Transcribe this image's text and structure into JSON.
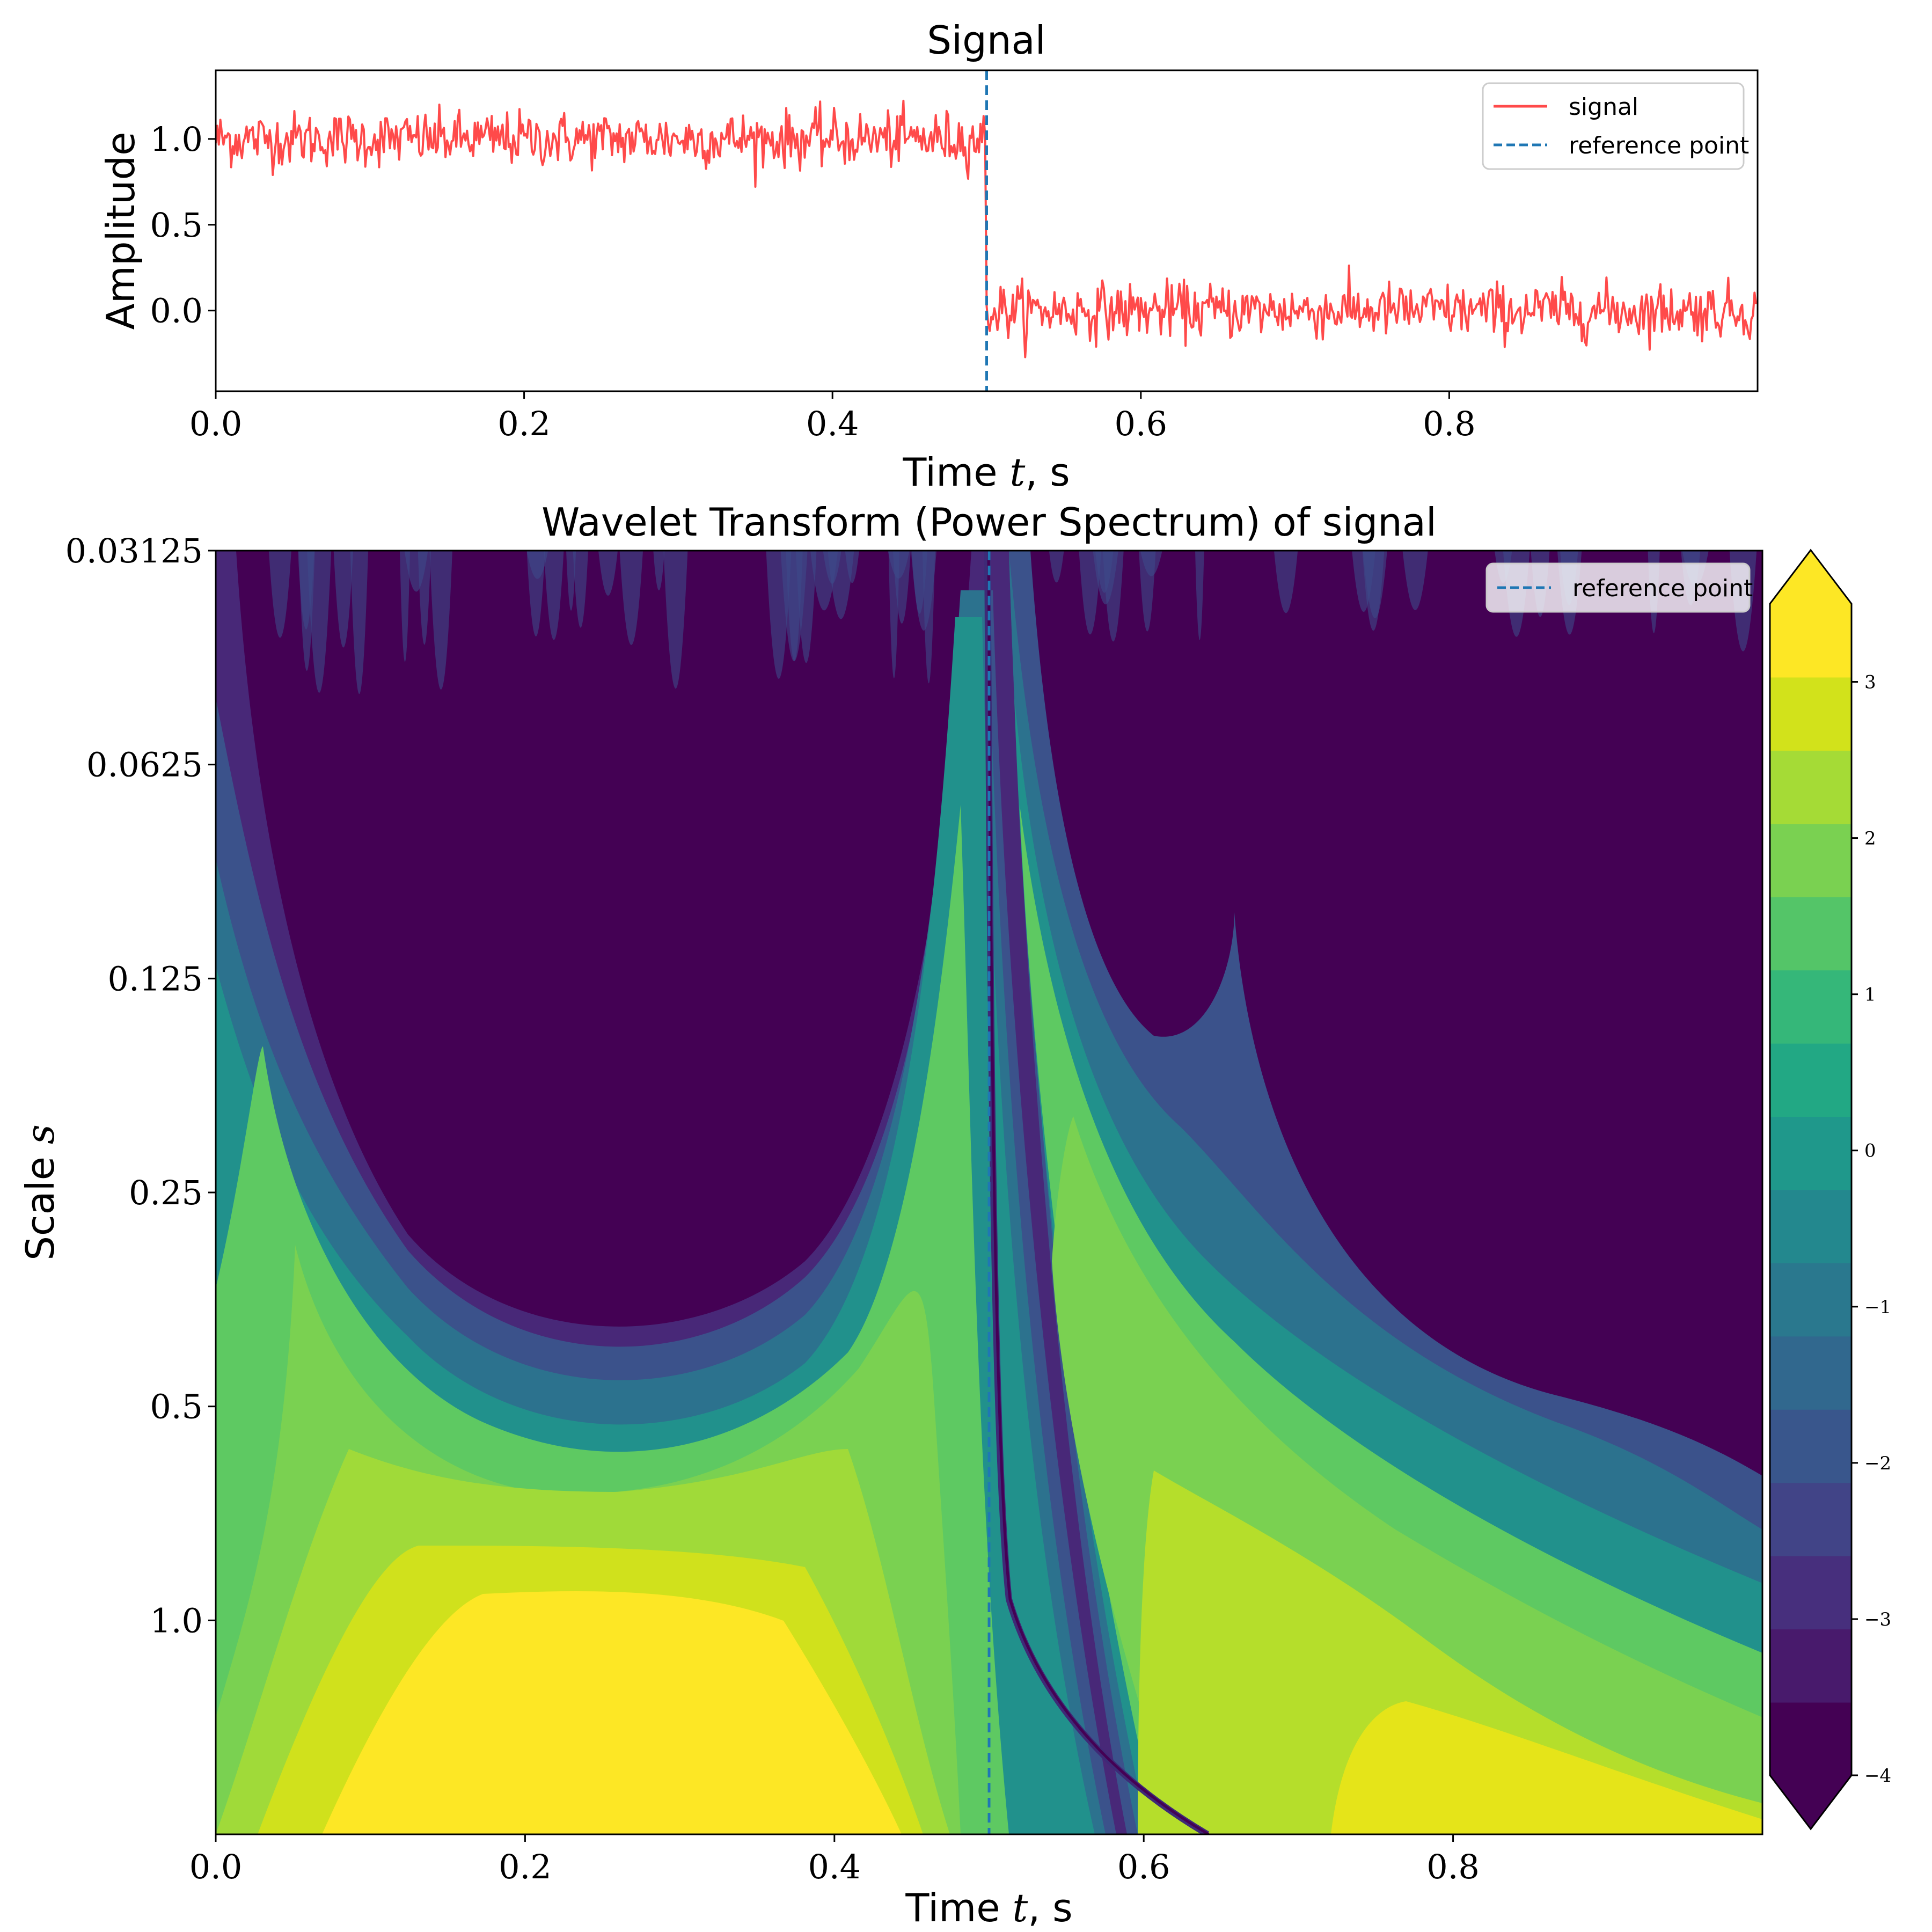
{
  "chart_data": [
    {
      "type": "line",
      "title": "Signal",
      "xlabel": "Time $t$, s",
      "ylabel": "Amplitude",
      "xlim": [
        0.0,
        1.0
      ],
      "ylim": [
        -0.47,
        1.4
      ],
      "xticks": [
        0.0,
        0.2,
        0.4,
        0.6,
        0.8
      ],
      "xtick_labels": [
        "0.0",
        "0.2",
        "0.4",
        "0.6",
        "0.8"
      ],
      "yticks": [
        0.0,
        0.5,
        1.0
      ],
      "ytick_labels": [
        "0.0",
        "0.5",
        "1.0"
      ],
      "legend_position": "top-right",
      "series": [
        {
          "name": "signal",
          "color": "#ff4a4a",
          "description_levels": [
            {
              "x_range": [
                0.0,
                0.5
              ],
              "mean": 1.0,
              "noise_std": 0.08
            },
            {
              "x_range": [
                0.5,
                1.0
              ],
              "mean": 0.0,
              "noise_std": 0.08
            }
          ],
          "n_points": 1000
        }
      ],
      "reference_lines": [
        {
          "name": "reference point",
          "x": 0.5,
          "color": "#1f77b4",
          "style": "dashed"
        }
      ]
    },
    {
      "type": "heatmap",
      "title": "Wavelet Transform (Power Spectrum) of signal",
      "xlabel": "Time $t$, s",
      "ylabel": "Scale $s$",
      "xlim": [
        0.0,
        1.0
      ],
      "yscale": "log2",
      "ylim": [
        0.03125,
        2.0
      ],
      "xticks": [
        0.0,
        0.2,
        0.4,
        0.6,
        0.8
      ],
      "xtick_labels": [
        "0.0",
        "0.2",
        "0.4",
        "0.6",
        "0.8"
      ],
      "yticks": [
        0.03125,
        0.0625,
        0.125,
        0.25,
        0.5,
        1.0
      ],
      "ytick_labels": [
        "0.03125",
        "0.0625",
        "0.125",
        "0.25",
        "0.5",
        "1.0"
      ],
      "colormap": "viridis",
      "colorbar": {
        "vmin": -4,
        "vmax": 3.5,
        "levels": 16,
        "extend": "both",
        "ticks": [
          3,
          2,
          1,
          0,
          -1,
          -2,
          -3,
          -4
        ],
        "tick_labels": [
          "3",
          "2",
          "1",
          "0",
          "−1",
          "−2",
          "−3",
          "−4"
        ]
      },
      "legend_position": "top-right",
      "reference_lines": [
        {
          "name": "reference point",
          "x": 0.5,
          "color": "#1f77b4",
          "style": "dashed"
        }
      ]
    }
  ]
}
